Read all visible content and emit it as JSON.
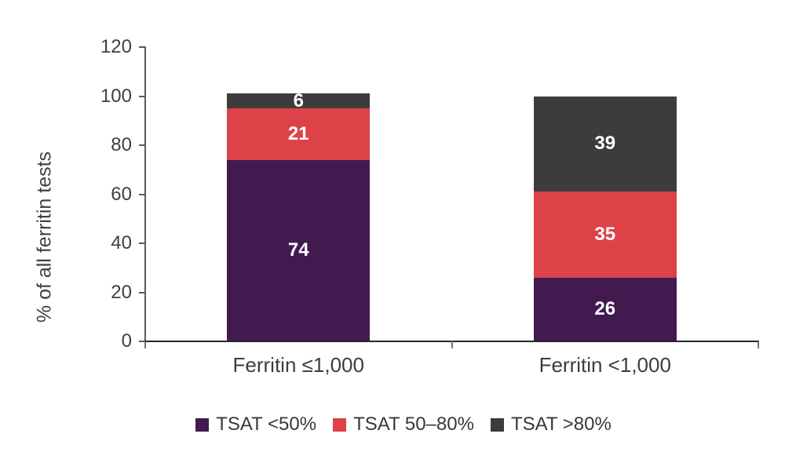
{
  "chart_data": {
    "type": "bar",
    "stacked": true,
    "title": "",
    "xlabel": "",
    "ylabel": "% of all ferritin tests",
    "ylim": [
      0,
      120
    ],
    "yticks": [
      0,
      20,
      40,
      60,
      80,
      100,
      120
    ],
    "grid": false,
    "legend_position": "bottom",
    "categories": [
      "Ferritin ≤1,000",
      "Ferritin <1,000"
    ],
    "series": [
      {
        "name": "TSAT <50%",
        "color": "#421a50",
        "values": [
          74,
          26
        ]
      },
      {
        "name": "TSAT 50–80%",
        "color": "#dc4247",
        "values": [
          21,
          35
        ]
      },
      {
        "name": "TSAT >80%",
        "color": "#3d3c3c",
        "values": [
          6,
          39
        ]
      }
    ],
    "value_label_color": "#ffffff",
    "axis_colors": {
      "y_axis_line": "#595959",
      "x_axis_line": "#262626",
      "tick": "#595959",
      "boundary_tick": "#737373",
      "label": "#404040"
    }
  }
}
